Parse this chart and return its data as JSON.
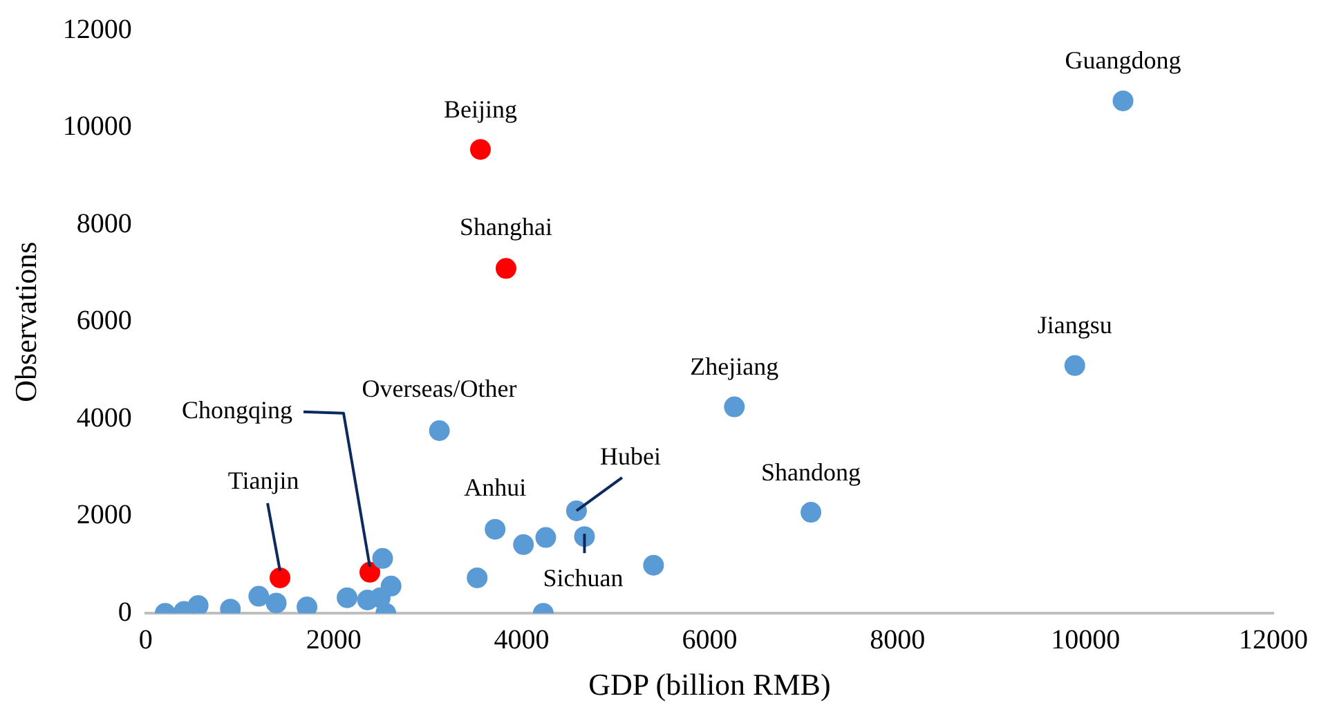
{
  "chart_data": {
    "type": "scatter",
    "xlabel": "GDP (billion RMB)",
    "ylabel": "Observations",
    "xlim": [
      0,
      12000
    ],
    "xticks": [
      0,
      2000,
      4000,
      6000,
      8000,
      10000,
      12000
    ],
    "ylim": [
      0,
      12000
    ],
    "yticks": [
      0,
      2000,
      4000,
      6000,
      8000,
      10000,
      12000
    ],
    "grid": false,
    "legend": false,
    "marker": "circle",
    "series": [
      {
        "x": [
          207,
          408,
          558,
          901,
          1203,
          1389,
          1429,
          1716,
          2143,
          2360,
          2385,
          2521,
          2611,
          2495,
          2555,
          3527,
          3718,
          4020,
          4257,
          4584,
          4669,
          5404,
          4231,
          3125,
          3562,
          3834,
          10400,
          9887,
          6264,
          7079
        ],
        "values": [
          0,
          40,
          160,
          85,
          350,
          210,
          730,
          130,
          320,
          275,
          845,
          1130,
          560,
          320,
          0,
          730,
          1730,
          1415,
          1560,
          2110,
          1580,
          990,
          0,
          3760,
          9550,
          7100,
          10550,
          5100,
          4250,
          2080
        ],
        "colors": [
          "#5b9bd5",
          "#5b9bd5",
          "#5b9bd5",
          "#5b9bd5",
          "#5b9bd5",
          "#5b9bd5",
          "#ff0000",
          "#5b9bd5",
          "#5b9bd5",
          "#5b9bd5",
          "#ff0000",
          "#5b9bd5",
          "#5b9bd5",
          "#5b9bd5",
          "#5b9bd5",
          "#5b9bd5",
          "#5b9bd5",
          "#5b9bd5",
          "#5b9bd5",
          "#5b9bd5",
          "#5b9bd5",
          "#5b9bd5",
          "#5b9bd5",
          "#5b9bd5",
          "#ff0000",
          "#ff0000",
          "#5b9bd5",
          "#5b9bd5",
          "#5b9bd5",
          "#5b9bd5"
        ]
      }
    ],
    "annotations": [
      {
        "text": "Beijing",
        "x": 3562,
        "y": 9550
      },
      {
        "text": "Shanghai",
        "x": 3834,
        "y": 7100
      },
      {
        "text": "Guangdong",
        "x": 10400,
        "y": 10550
      },
      {
        "text": "Jiangsu",
        "x": 9887,
        "y": 5100
      },
      {
        "text": "Zhejiang",
        "x": 6264,
        "y": 4250
      },
      {
        "text": "Shandong",
        "x": 7079,
        "y": 2080
      },
      {
        "text": "Overseas/Other",
        "x": 3125,
        "y": 3760
      },
      {
        "text": "Anhui",
        "x": 3718,
        "y": 1730
      },
      {
        "text": "Tianjin",
        "x": 1429,
        "y": 730
      },
      {
        "text": "Chongqing",
        "x": 2385,
        "y": 845
      },
      {
        "text": "Hubei",
        "x": 4584,
        "y": 2110
      },
      {
        "text": "Sichuan",
        "x": 4669,
        "y": 1580
      }
    ]
  }
}
